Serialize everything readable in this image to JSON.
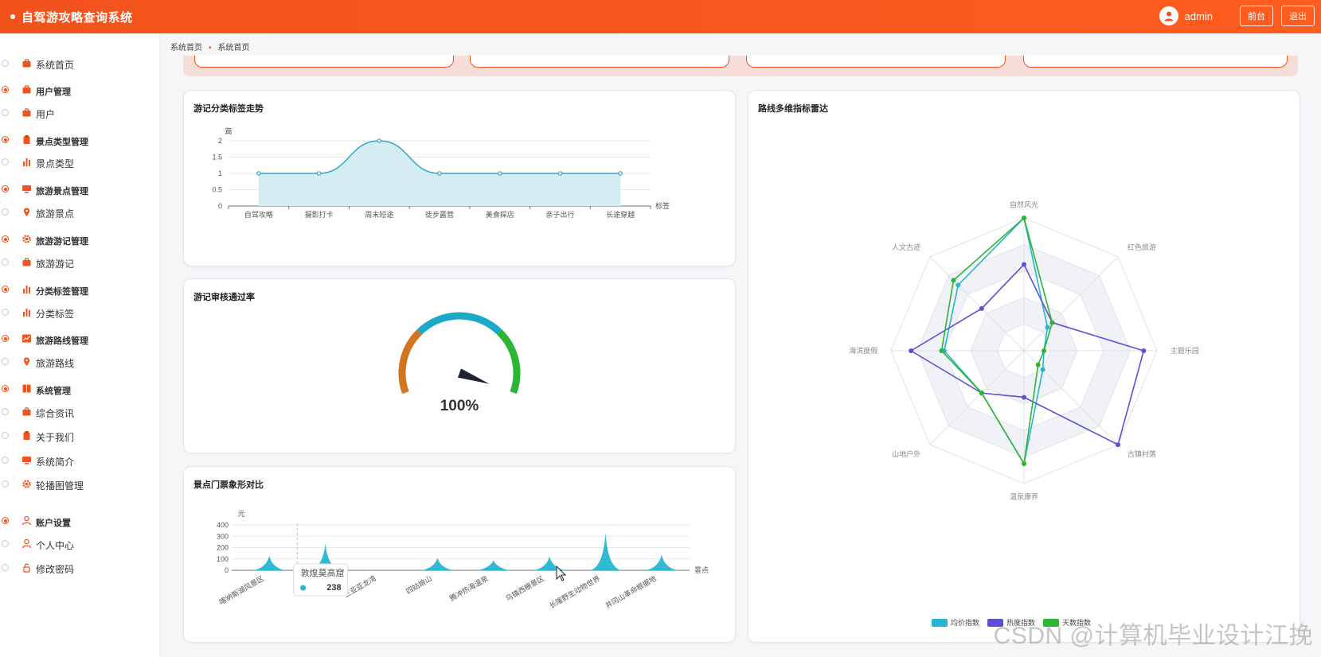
{
  "header": {
    "title": "自驾游攻略查询系统",
    "username": "admin",
    "front_label": "前台",
    "logout_label": "退出"
  },
  "sidebar": {
    "items": [
      {
        "label": "系统首页",
        "type": "item",
        "icon": "briefcase-icon"
      },
      {
        "label": "用户管理",
        "type": "group",
        "icon": "briefcase-icon"
      },
      {
        "label": "用户",
        "type": "item",
        "icon": "briefcase-icon"
      },
      {
        "label": "景点类型管理",
        "type": "group",
        "icon": "clipboard-icon"
      },
      {
        "label": "景点类型",
        "type": "item",
        "icon": "bar-chart-icon"
      },
      {
        "label": "旅游景点管理",
        "type": "group",
        "icon": "monitor-icon"
      },
      {
        "label": "旅游景点",
        "type": "item",
        "icon": "map-pin-icon"
      },
      {
        "label": "旅游游记管理",
        "type": "group",
        "icon": "gear-icon"
      },
      {
        "label": "旅游游记",
        "type": "item",
        "icon": "briefcase-icon"
      },
      {
        "label": "分类标签管理",
        "type": "group",
        "icon": "bar-chart-icon"
      },
      {
        "label": "分类标签",
        "type": "item",
        "icon": "bar-chart-icon"
      },
      {
        "label": "旅游路线管理",
        "type": "group",
        "icon": "trend-chart-icon"
      },
      {
        "label": "旅游路线",
        "type": "item",
        "icon": "map-pin-icon"
      },
      {
        "label": "系统管理",
        "type": "group",
        "icon": "book-icon"
      },
      {
        "label": "综合资讯",
        "type": "item",
        "icon": "briefcase-icon"
      },
      {
        "label": "关于我们",
        "type": "item",
        "icon": "clipboard-icon"
      },
      {
        "label": "系统简介",
        "type": "item",
        "icon": "monitor-icon"
      },
      {
        "label": "轮播图管理",
        "type": "item",
        "icon": "gear-icon"
      },
      {
        "label": "账户设置",
        "type": "group",
        "icon": "user-icon"
      },
      {
        "label": "个人中心",
        "type": "item",
        "icon": "user-icon"
      },
      {
        "label": "修改密码",
        "type": "item",
        "icon": "lock-icon"
      }
    ]
  },
  "breadcrumb": {
    "home": "系统首页",
    "current": "系统首页"
  },
  "panels": {
    "line_title": "游记分类标签走势",
    "gauge_title": "游记审核通过率",
    "pictorial_title": "景点门票象形对比",
    "radar_title": "路线多维指标雷达"
  },
  "chart_data": [
    {
      "type": "area",
      "title": "游记分类标签走势",
      "ylabel": "篇",
      "xlabel": "标签",
      "ylim": [
        0,
        2
      ],
      "yticks": [
        "0",
        "0.5",
        "1",
        "1.5",
        "2"
      ],
      "categories": [
        "自驾攻略",
        "摄影打卡",
        "周末短途",
        "徒步露营",
        "美食探店",
        "亲子出行",
        "长途穿越"
      ],
      "values": [
        1,
        1,
        2,
        1,
        1,
        1,
        1
      ]
    },
    {
      "type": "gauge",
      "title": "游记审核通过率",
      "value": 100,
      "label": "100%"
    },
    {
      "type": "bar",
      "title": "景点门票象形对比",
      "ylabel": "元",
      "xlabel": "景点",
      "ylim": [
        0,
        400
      ],
      "yticks": [
        "0",
        "100",
        "200",
        "300",
        "400"
      ],
      "categories": [
        "喀纳斯湖风景区",
        "敦煌莫高窟",
        "三亚亚龙湾",
        "四姑娘山",
        "腾冲热海温泉",
        "乌镇西栅景区",
        "长隆野生动物世界",
        "井冈山革命根据地"
      ],
      "category_labels": [
        "喀纳斯湖风景区",
        "",
        "三亚亚龙湾",
        "四姑娘山",
        "腾冲热海温泉",
        "乌镇西栅景区",
        "长隆野生动物世界",
        "井冈山革命根据地"
      ],
      "values": [
        130,
        238,
        0,
        110,
        90,
        125,
        330,
        140
      ],
      "tooltip": {
        "name": "敦煌莫高窟",
        "value": "238"
      }
    },
    {
      "type": "radar",
      "title": "路线多维指标雷达",
      "indicators": [
        "自然风光",
        "红色旅游",
        "主题乐园",
        "古镇村落",
        "温泉康养",
        "山地户外",
        "海滨度假",
        "人文古迹"
      ],
      "max": 100,
      "series": [
        {
          "name": "均价指数",
          "color": "#25b6d2",
          "values": [
            100,
            25,
            15,
            20,
            85,
            45,
            60,
            70
          ]
        },
        {
          "name": "热度指数",
          "color": "#5b4fd8",
          "values": [
            65,
            30,
            90,
            100,
            35,
            45,
            85,
            45
          ]
        },
        {
          "name": "天数指数",
          "color": "#2db535",
          "values": [
            100,
            30,
            15,
            15,
            85,
            45,
            62,
            75
          ]
        }
      ]
    }
  ],
  "watermark": "CSDN @计算机毕业设计江挽"
}
